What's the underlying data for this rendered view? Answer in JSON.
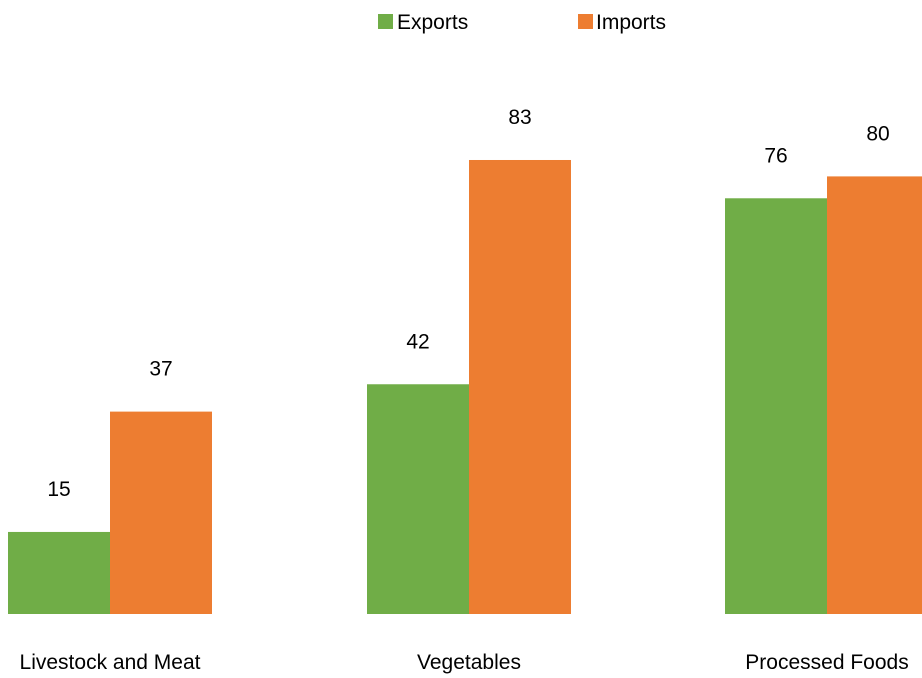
{
  "chart_data": {
    "type": "bar",
    "categories": [
      "Livestock and Meat",
      "Vegetables",
      "Processed Foods"
    ],
    "series": [
      {
        "name": "Exports",
        "values": [
          15,
          42,
          76
        ],
        "color": "#70AD47"
      },
      {
        "name": "Imports",
        "values": [
          37,
          83,
          80
        ],
        "color": "#ED7D31"
      }
    ],
    "data_labels": true,
    "legend_position": "top",
    "grid": false,
    "ylim": [
      0,
      100
    ]
  }
}
